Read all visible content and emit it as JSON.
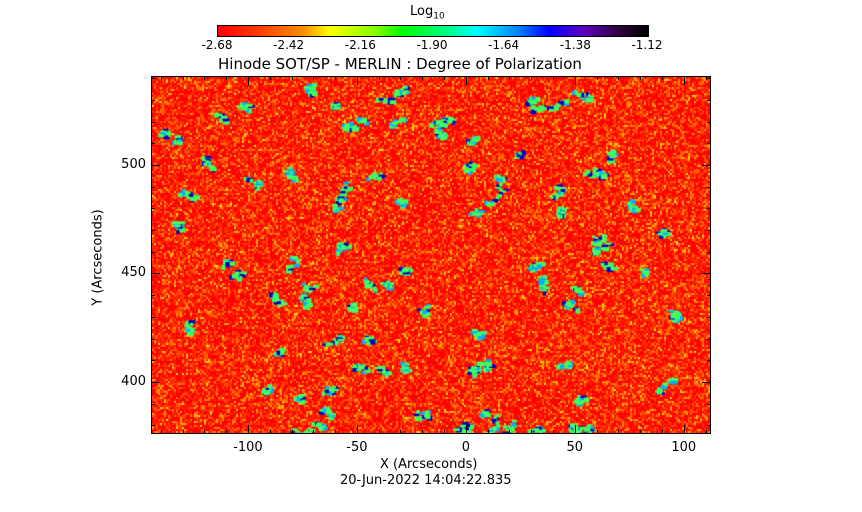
{
  "colorbar": {
    "label": "Log",
    "label_sub": "10",
    "ticks": [
      "-2.68",
      "-2.42",
      "-2.16",
      "-1.90",
      "-1.64",
      "-1.38",
      "-1.12"
    ]
  },
  "chart_data": {
    "type": "heatmap",
    "title": "Hinode SOT/SP - MERLIN : Degree of Polarization",
    "xlabel": "X (Arcseconds)",
    "ylabel": "Y (Arcseconds)",
    "xlim": [
      -144.5,
      112.5
    ],
    "ylim": [
      376,
      541
    ],
    "xticks": [
      -100,
      -50,
      0,
      50,
      100
    ],
    "yticks": [
      400,
      450,
      500
    ],
    "zlim": [
      -2.68,
      -1.12
    ],
    "colormap": "rainbow (red to black)"
  },
  "footer": {
    "timestamp": "20-Jun-2022 14:04:22.835"
  }
}
